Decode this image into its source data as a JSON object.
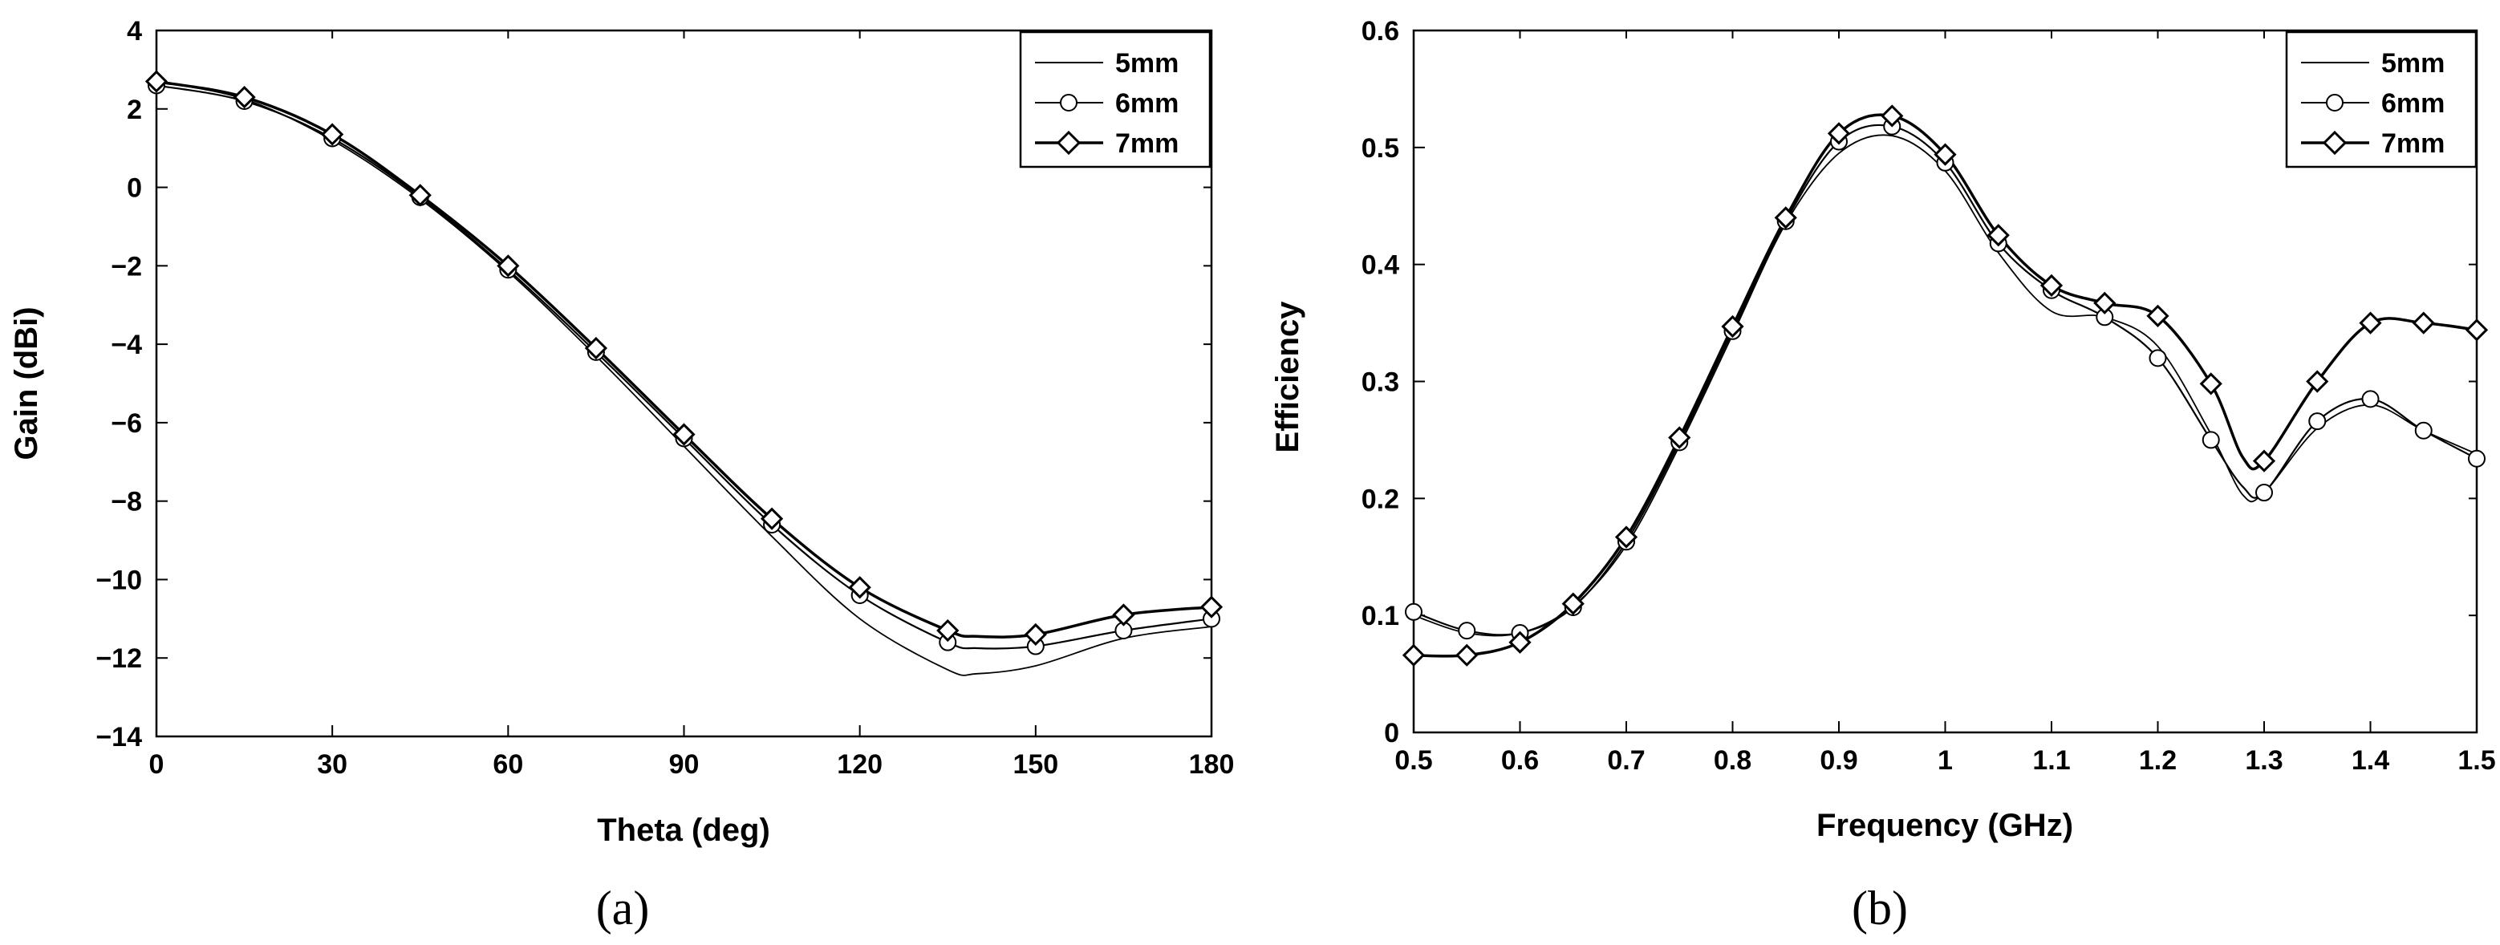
{
  "chart_data": [
    {
      "type": "line",
      "panel_label": "(a)",
      "xlabel": "Theta (deg)",
      "ylabel": "Gain (dBi)",
      "xlim": [
        0,
        180
      ],
      "ylim": [
        -14,
        4
      ],
      "xticks": [
        0,
        30,
        60,
        90,
        120,
        150,
        180
      ],
      "xtick_labels": [
        "0",
        "30",
        "60",
        "90",
        "120",
        "150",
        "180"
      ],
      "yticks": [
        -14,
        -12,
        -10,
        -8,
        -6,
        -4,
        -2,
        0,
        2,
        4
      ],
      "ytick_labels": [
        "−14",
        "−12",
        "−10",
        "−8",
        "−6",
        "−4",
        "−2",
        "0",
        "2",
        "4"
      ],
      "legend_position": "top-right",
      "x": [
        0,
        15,
        30,
        45,
        60,
        75,
        90,
        105,
        120,
        135,
        140,
        150,
        165,
        180
      ],
      "series": [
        {
          "name": "5mm",
          "marker": "none",
          "values": [
            2.7,
            2.25,
            1.2,
            -0.3,
            -2.15,
            -4.3,
            -6.6,
            -8.9,
            -11.0,
            -12.3,
            -12.4,
            -12.2,
            -11.5,
            -11.2
          ]
        },
        {
          "name": "6mm",
          "marker": "circle",
          "values": [
            2.6,
            2.2,
            1.25,
            -0.25,
            -2.1,
            -4.2,
            -6.4,
            -8.6,
            -10.4,
            -11.6,
            -11.75,
            -11.7,
            -11.3,
            -11.0
          ]
        },
        {
          "name": "7mm",
          "marker": "diamond",
          "values": [
            2.7,
            2.3,
            1.35,
            -0.2,
            -2.0,
            -4.1,
            -6.3,
            -8.45,
            -10.2,
            -11.3,
            -11.45,
            -11.4,
            -10.9,
            -10.7
          ]
        }
      ]
    },
    {
      "type": "line",
      "panel_label": "(b)",
      "xlabel": "Frequency (GHz)",
      "ylabel": "Efficiency",
      "xlim": [
        0.5,
        1.5
      ],
      "ylim": [
        0,
        0.6
      ],
      "xticks": [
        0.5,
        0.6,
        0.7,
        0.8,
        0.9,
        1.0,
        1.1,
        1.2,
        1.3,
        1.4,
        1.5
      ],
      "xtick_labels": [
        "0.5",
        "0.6",
        "0.7",
        "0.8",
        "0.9",
        "1",
        "1.1",
        "1.2",
        "1.3",
        "1.4",
        "1.5"
      ],
      "yticks": [
        0,
        0.1,
        0.2,
        0.3,
        0.4,
        0.5,
        0.6
      ],
      "ytick_labels": [
        "0",
        "0.1",
        "0.2",
        "0.3",
        "0.4",
        "0.5",
        "0.6"
      ],
      "legend_position": "top-right",
      "x": [
        0.5,
        0.55,
        0.6,
        0.65,
        0.7,
        0.75,
        0.8,
        0.85,
        0.9,
        0.95,
        1.0,
        1.05,
        1.1,
        1.15,
        1.2,
        1.25,
        1.28,
        1.3,
        1.35,
        1.4,
        1.45,
        1.5
      ],
      "series": [
        {
          "name": "5mm",
          "marker": "none",
          "values": [
            0.1,
            0.085,
            0.085,
            0.108,
            0.16,
            0.245,
            0.34,
            0.435,
            0.495,
            0.51,
            0.48,
            0.41,
            0.36,
            0.355,
            0.33,
            0.255,
            0.203,
            0.205,
            0.26,
            0.28,
            0.258,
            0.238
          ]
        },
        {
          "name": "6mm",
          "marker": "circle",
          "values": [
            0.103,
            0.087,
            0.085,
            0.107,
            0.163,
            0.248,
            0.343,
            0.437,
            0.505,
            0.518,
            0.487,
            0.418,
            0.378,
            0.355,
            0.32,
            0.25,
            0.21,
            0.205,
            0.266,
            0.285,
            0.258,
            0.234
          ]
        },
        {
          "name": "7mm",
          "marker": "diamond",
          "values": [
            0.066,
            0.066,
            0.077,
            0.11,
            0.167,
            0.252,
            0.347,
            0.44,
            0.512,
            0.527,
            0.494,
            0.425,
            0.382,
            0.367,
            0.356,
            0.298,
            0.235,
            0.232,
            0.3,
            0.35,
            0.35,
            0.344
          ]
        }
      ]
    }
  ]
}
